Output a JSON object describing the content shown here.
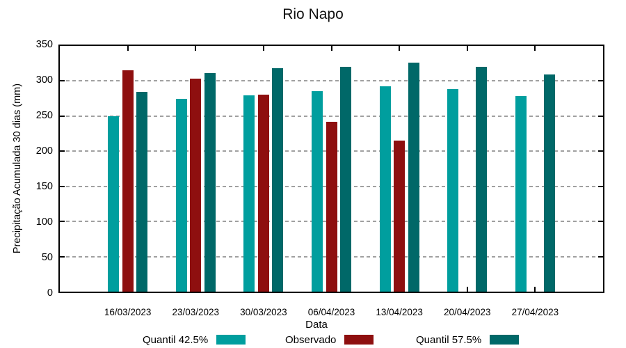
{
  "chart_data": {
    "type": "bar",
    "title": "Rio Napo",
    "xlabel": "Data",
    "ylabel": "Precipitação Acumulada 30 dias (mm)",
    "ylim": [
      0,
      350
    ],
    "yticks": [
      0,
      50,
      100,
      150,
      200,
      250,
      300,
      350
    ],
    "grid": "horizontal-dashed",
    "legend_position": "bottom",
    "categories": [
      "16/03/2023",
      "23/03/2023",
      "30/03/2023",
      "06/04/2023",
      "13/04/2023",
      "20/04/2023",
      "27/04/2023"
    ],
    "series": [
      {
        "name": "Quantil 42.5%",
        "color": "#009e9e",
        "values": [
          250,
          275,
          280,
          286,
          292,
          289,
          279
        ]
      },
      {
        "name": "Observado",
        "color": "#8e0f0f",
        "values": [
          315,
          303,
          281,
          242,
          215,
          null,
          null
        ]
      },
      {
        "name": "Quantil 57.5%",
        "color": "#006868",
        "values": [
          285,
          311,
          318,
          320,
          326,
          320,
          309
        ]
      }
    ]
  }
}
